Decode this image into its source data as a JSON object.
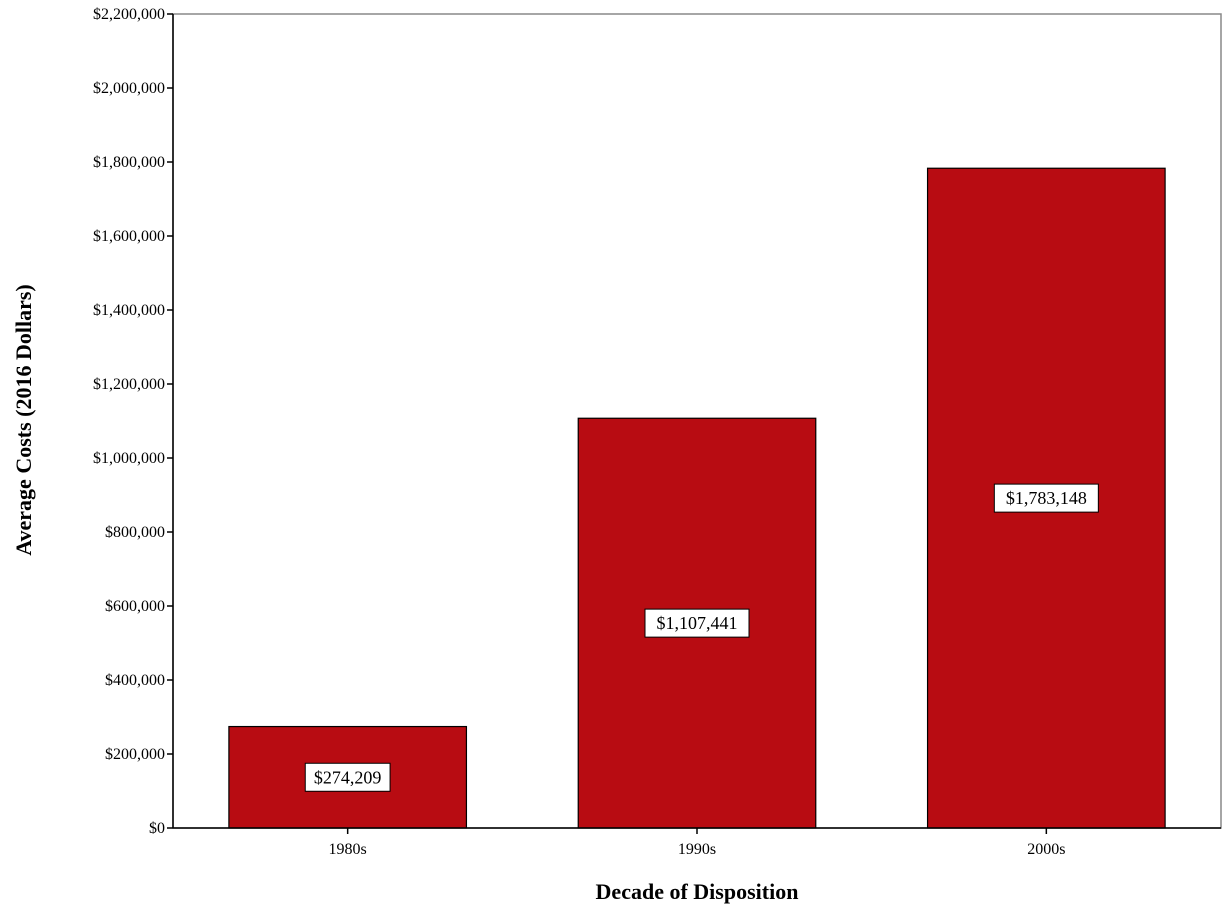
{
  "chart_data": {
    "type": "bar",
    "title": "",
    "xlabel": "Decade of Disposition",
    "ylabel": "Average Costs (2016 Dollars)",
    "categories": [
      "1980s",
      "1990s",
      "2000s"
    ],
    "values": [
      274209,
      1107441,
      1783148
    ],
    "data_labels": [
      "$274,209",
      "$1,107,441",
      "$1,783,148"
    ],
    "ylim": [
      0,
      2200000
    ],
    "y_ticks": [
      0,
      200000,
      400000,
      600000,
      800000,
      1000000,
      1200000,
      1400000,
      1600000,
      1800000,
      2000000,
      2200000
    ],
    "y_tick_labels": [
      "$0",
      "$200,000",
      "$400,000",
      "$600,000",
      "$800,000",
      "$1,000,000",
      "$1,200,000",
      "$1,400,000",
      "$1,600,000",
      "$1,800,000",
      "$2,000,000",
      "$2,200,000"
    ],
    "grid": false,
    "legend": "none",
    "bar_color": "#b80c12"
  }
}
